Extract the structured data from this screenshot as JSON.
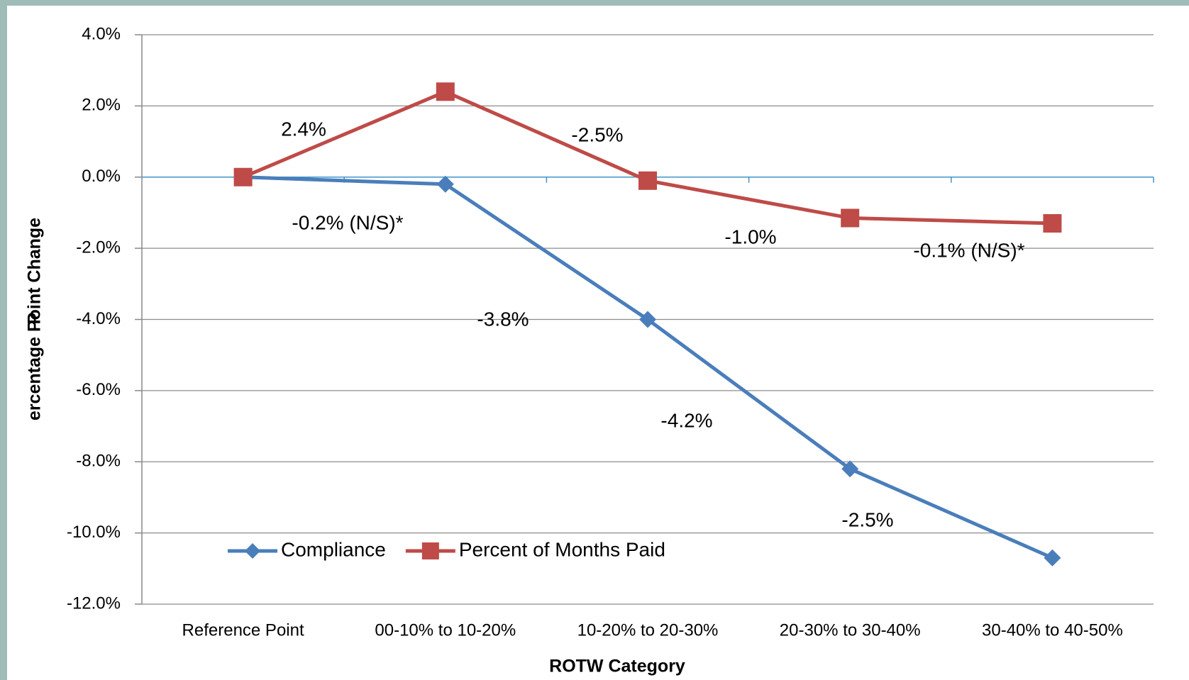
{
  "chart_data": {
    "type": "line",
    "x_label": "ROTW Category",
    "y_label": "Percentage Point Change",
    "categories": [
      "Reference Point",
      "00-10% to 10-20%",
      "10-20% to 20-30%",
      "20-30% to 30-40%",
      "30-40% to 40-50%"
    ],
    "series": [
      {
        "name": "Compliance",
        "color": "#4a7ebb",
        "marker": "diamond",
        "values": [
          0,
          -0.2,
          -4.0,
          -8.2,
          -10.7
        ]
      },
      {
        "name": "Percent of Months Paid",
        "color": "#be4b48",
        "marker": "square",
        "values": [
          0,
          2.4,
          -0.1,
          -1.15,
          -1.3
        ]
      }
    ],
    "annotations": [
      "2.4%",
      "-2.5%",
      "-0.2% (N/S)*",
      "-1.0%",
      "-0.1% (N/S)*",
      "-3.8%",
      "-4.2%",
      "-2.5%"
    ],
    "ylim": [
      -12,
      4
    ],
    "yticks": [
      {
        "value": -12,
        "label": "-12.0%"
      },
      {
        "value": -10,
        "label": "-10.0%"
      },
      {
        "value": -8,
        "label": "-8.0%"
      },
      {
        "value": -6,
        "label": "-6.0%"
      },
      {
        "value": -4,
        "label": "-4.0%"
      },
      {
        "value": -2,
        "label": "-2.0%"
      },
      {
        "value": 0,
        "label": "0.0%"
      },
      {
        "value": 2,
        "label": "2.0%"
      },
      {
        "value": 4,
        "label": "4.0%"
      }
    ],
    "grid": true,
    "legend": "lower left"
  }
}
